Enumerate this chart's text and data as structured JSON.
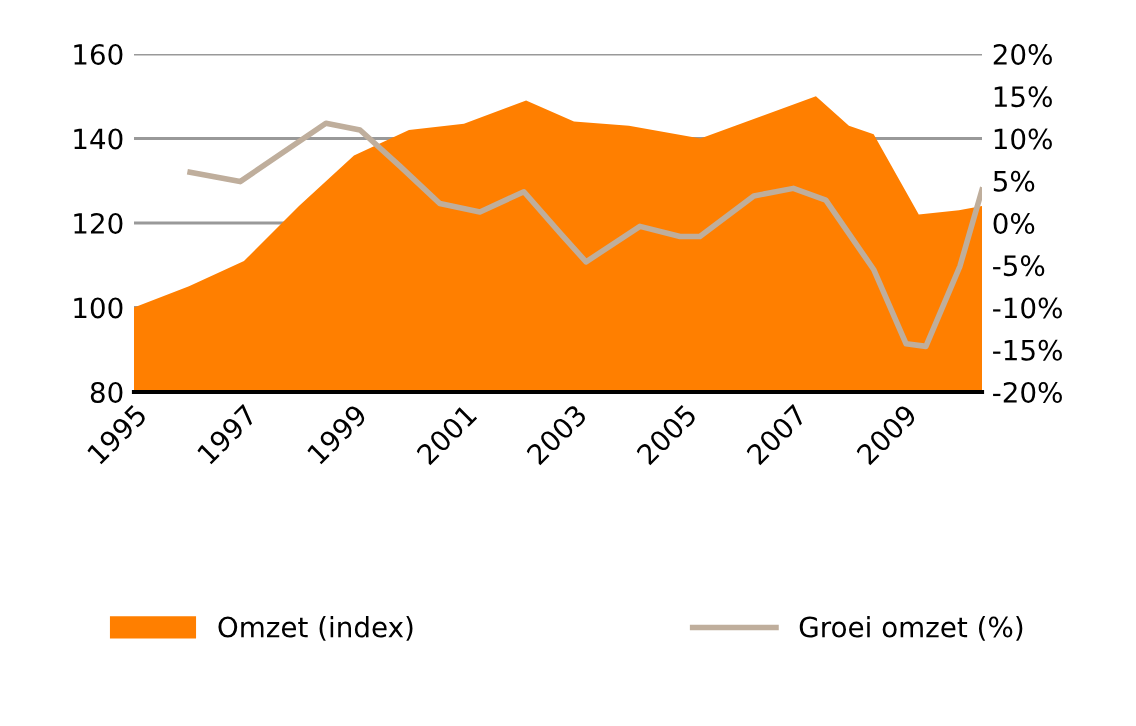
{
  "chart_data": {
    "type": "area",
    "xlim": [
      1995,
      2010.42
    ],
    "xticks": [
      1995,
      1997,
      1999,
      2001,
      2003,
      2005,
      2007,
      2009
    ],
    "ylim": [
      80,
      160
    ],
    "yticks": [
      80,
      100,
      120,
      140,
      160
    ],
    "y2lim": [
      -20,
      20
    ],
    "y2ticks": [
      {
        "value": -20,
        "label": "-20%"
      },
      {
        "value": -15,
        "label": "-15%"
      },
      {
        "value": -10,
        "label": "-10%"
      },
      {
        "value": -5,
        "label": "-5%"
      },
      {
        "value": 0,
        "label": "0%"
      },
      {
        "value": 5,
        "label": "5%"
      },
      {
        "value": 10,
        "label": "10%"
      },
      {
        "value": 15,
        "label": "15%"
      },
      {
        "value": 20,
        "label": "20%"
      }
    ],
    "grid": "y",
    "legend": "bottom",
    "series": [
      {
        "name": "Omzet (index)",
        "color": "#ff7f00",
        "x": [
          1995,
          1996,
          1997,
          1998,
          1999,
          1999.5,
          2000,
          2001,
          2002.13,
          2003,
          2004,
          2005.3,
          2007.4,
          2008,
          2008.45,
          2009.27,
          2010,
          2010.42
        ],
        "values": [
          100,
          105,
          111,
          124,
          136,
          139,
          142,
          143.5,
          149,
          144,
          143,
          140,
          150,
          143,
          141,
          122,
          123,
          124
        ]
      },
      {
        "name": "Groei omzet (%)",
        "type": "line",
        "axis": "y2",
        "color": "#bfae9c",
        "x": [
          1996.02,
          1996.93,
          1998.49,
          1999.11,
          1999.84,
          2000.56,
          2001.29,
          2002.09,
          2002.75,
          2003.22,
          2004.2,
          2004.93,
          2005.29,
          2006.27,
          2006.99,
          2007.58,
          2008.45,
          2009.04,
          2009.4,
          2010.02,
          2010.42
        ],
        "values": [
          6,
          4.9,
          11.8,
          11,
          6.7,
          2.3,
          1.3,
          3.7,
          -1.2,
          -4.6,
          -0.4,
          -1.6,
          -1.6,
          3.2,
          4.1,
          2.7,
          -5.5,
          -14.3,
          -14.6,
          -5.1,
          3.9
        ]
      }
    ]
  }
}
